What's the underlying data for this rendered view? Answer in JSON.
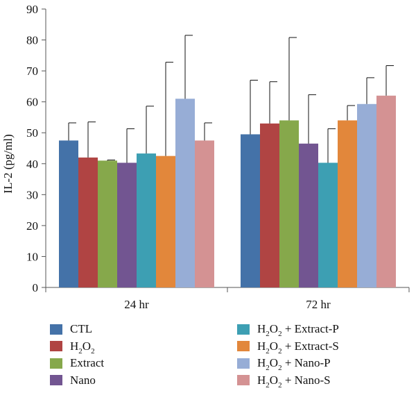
{
  "chart_data": {
    "type": "bar",
    "title": "",
    "xlabel": "",
    "ylabel": "IL-2 (pg/ml)",
    "ylim": [
      0,
      90
    ],
    "yticks": [
      0,
      10,
      20,
      30,
      40,
      50,
      60,
      70,
      80,
      90
    ],
    "categories": [
      "24 hr",
      "72 hr"
    ],
    "error_bars": "upper",
    "grid": false,
    "legend_position": "bottom",
    "series": [
      {
        "name": "CTL",
        "color": "#4472a8",
        "values": [
          47.5,
          49.5
        ],
        "errors": [
          5.7,
          17.5
        ]
      },
      {
        "name": "H2O2",
        "color": "#b04443",
        "values": [
          42,
          53
        ],
        "errors": [
          11.5,
          13.5
        ]
      },
      {
        "name": "Extract",
        "color": "#86a84b",
        "values": [
          41,
          54
        ],
        "errors": [
          0.2,
          26.8
        ]
      },
      {
        "name": "Nano",
        "color": "#725591",
        "values": [
          40.3,
          46.5
        ],
        "errors": [
          11,
          15.8
        ]
      },
      {
        "name": "H2O2 + Extract-P",
        "color": "#3d9fb3",
        "values": [
          43.3,
          40.3
        ],
        "errors": [
          15.3,
          11
        ]
      },
      {
        "name": "H2O2 + Extract-S",
        "color": "#e2873b",
        "values": [
          42.5,
          54
        ],
        "errors": [
          30.3,
          4.8
        ]
      },
      {
        "name": "H2O2 + Nano-P",
        "color": "#97add6",
        "values": [
          61,
          59.3
        ],
        "errors": [
          20.5,
          8.5
        ]
      },
      {
        "name": "H2O2 + Nano-S",
        "color": "#d49293",
        "values": [
          47.5,
          62
        ],
        "errors": [
          5.7,
          9.7
        ]
      }
    ]
  },
  "legend": {
    "items": [
      {
        "prefix": "CTL",
        "sub": "",
        "suffix": ""
      },
      {
        "prefix": "H",
        "sub": "2",
        "mid": "O",
        "sub2": "2",
        "suffix": ""
      },
      {
        "prefix": "Extract",
        "sub": "",
        "suffix": ""
      },
      {
        "prefix": "Nano",
        "sub": "",
        "suffix": ""
      },
      {
        "prefix": "H",
        "sub": "2",
        "mid": "O",
        "sub2": "2",
        "suffix": " + Extract-P"
      },
      {
        "prefix": "H",
        "sub": "2",
        "mid": "O",
        "sub2": "2",
        "suffix": " + Extract-S"
      },
      {
        "prefix": "H",
        "sub": "2",
        "mid": "O",
        "sub2": "2",
        "suffix": " + Nano-P"
      },
      {
        "prefix": "H",
        "sub": "2",
        "mid": "O",
        "sub2": "2",
        "suffix": " + Nano-S"
      }
    ]
  }
}
